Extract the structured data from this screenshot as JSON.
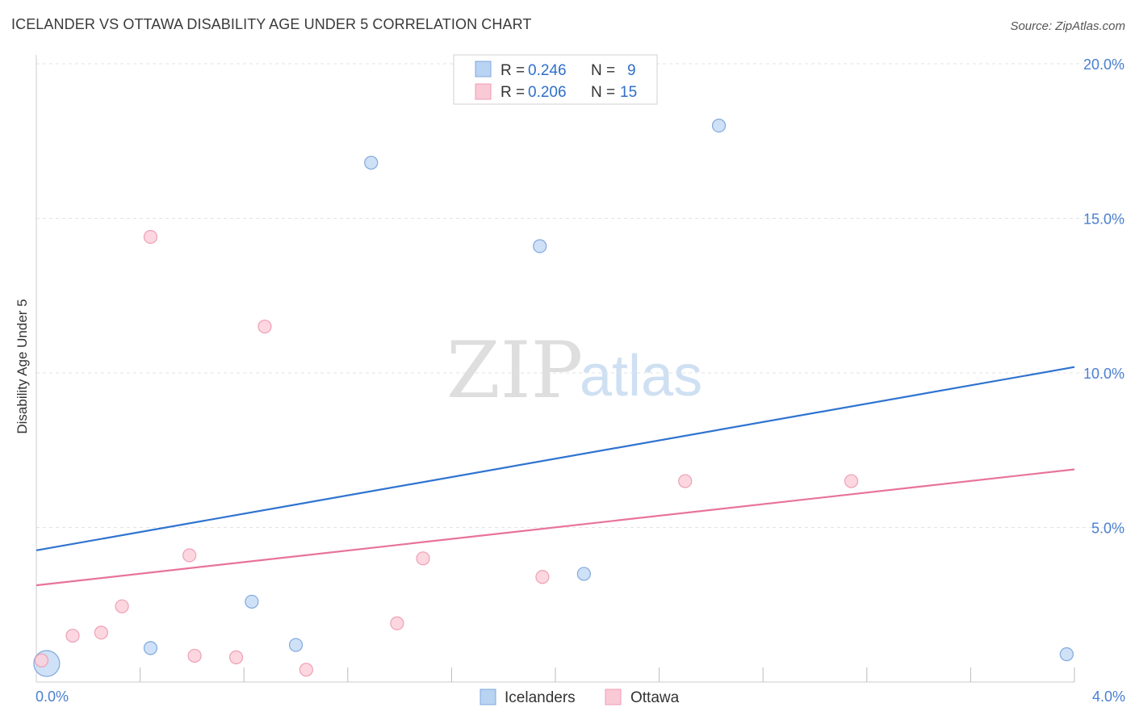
{
  "title": "ICELANDER VS OTTAWA DISABILITY AGE UNDER 5 CORRELATION CHART",
  "source": "Source: ZipAtlas.com",
  "watermark": {
    "zip": "ZIP",
    "atlas": "atlas"
  },
  "legend_top": [
    {
      "r_label": "R = ",
      "r_value": "0.246",
      "n_label": "N = ",
      "n_value": "9"
    },
    {
      "r_label": "R = ",
      "r_value": "0.206",
      "n_label": "N = ",
      "n_value": "15"
    }
  ],
  "chart_data": {
    "type": "scatter",
    "title": "ICELANDER VS OTTAWA DISABILITY AGE UNDER 5 CORRELATION CHART",
    "xlabel": "",
    "ylabel": "Disability Age Under 5",
    "xlim": [
      0.0,
      4.0
    ],
    "ylim": [
      0.0,
      20.0
    ],
    "x_tick_labels": [
      "0.0%",
      "4.0%"
    ],
    "y_ticks": [
      5,
      10,
      15,
      20
    ],
    "y_tick_labels": [
      "5.0%",
      "10.0%",
      "15.0%",
      "20.0%"
    ],
    "colors": {
      "Icelanders": "#a9c8ef",
      "Ottawa": "#f7b8c8",
      "icelanders_line": "#2f73d0",
      "ottawa_line": "#e8739a"
    },
    "series": [
      {
        "name": "Icelanders",
        "r": 0.246,
        "n": 9,
        "points": [
          {
            "x": 0.04,
            "y": 0.6,
            "big": true
          },
          {
            "x": 0.44,
            "y": 1.1
          },
          {
            "x": 0.83,
            "y": 2.6
          },
          {
            "x": 1.0,
            "y": 1.2
          },
          {
            "x": 1.29,
            "y": 16.8
          },
          {
            "x": 1.94,
            "y": 14.1
          },
          {
            "x": 2.11,
            "y": 3.5
          },
          {
            "x": 2.63,
            "y": 18.0
          },
          {
            "x": 3.97,
            "y": 0.9
          }
        ],
        "trend": {
          "x0": 0.0,
          "y0": 4.26,
          "x1": 4.0,
          "y1": 10.19
        }
      },
      {
        "name": "Ottawa",
        "r": 0.206,
        "n": 15,
        "points": [
          {
            "x": 0.02,
            "y": 0.7
          },
          {
            "x": 0.14,
            "y": 1.5
          },
          {
            "x": 0.25,
            "y": 1.6
          },
          {
            "x": 0.33,
            "y": 2.45
          },
          {
            "x": 0.44,
            "y": 14.4
          },
          {
            "x": 0.59,
            "y": 4.1
          },
          {
            "x": 0.61,
            "y": 0.85
          },
          {
            "x": 0.77,
            "y": 0.8
          },
          {
            "x": 0.88,
            "y": 11.5
          },
          {
            "x": 1.04,
            "y": 0.4
          },
          {
            "x": 1.39,
            "y": 1.9
          },
          {
            "x": 1.49,
            "y": 4.0
          },
          {
            "x": 1.95,
            "y": 3.4
          },
          {
            "x": 2.5,
            "y": 6.5
          },
          {
            "x": 3.14,
            "y": 6.5
          }
        ],
        "trend": {
          "x0": 0.0,
          "y0": 3.13,
          "x1": 4.0,
          "y1": 6.88
        }
      }
    ],
    "legend": [
      "Icelanders",
      "Ottawa"
    ]
  }
}
